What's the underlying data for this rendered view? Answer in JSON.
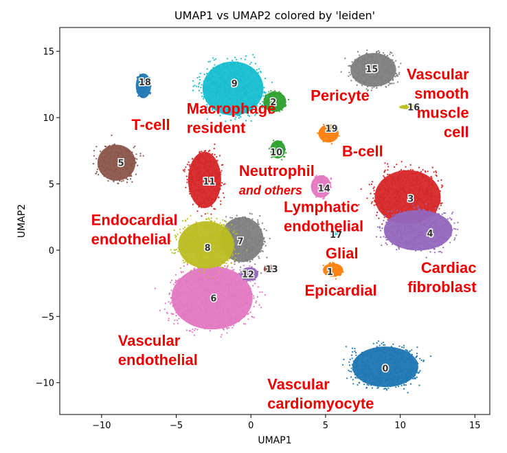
{
  "chart_data": {
    "type": "scatter",
    "title": "UMAP1 vs UMAP2 colored by 'leiden'",
    "xlabel": "UMAP1",
    "ylabel": "UMAP2",
    "xlim": [
      -12.8,
      16.0
    ],
    "ylim": [
      -12.4,
      16.8
    ],
    "xticks": [
      -10,
      -5,
      0,
      5,
      10,
      15
    ],
    "yticks": [
      -10,
      -5,
      0,
      5,
      10,
      15
    ],
    "clusters": [
      {
        "id": "0",
        "color": "#1f77b4",
        "cx": 9.0,
        "cy": -8.8,
        "rx": 2.6,
        "ry": 1.8,
        "n": 650
      },
      {
        "id": "1",
        "color": "#ff7f0e",
        "cx": 5.5,
        "cy": -1.5,
        "rx": 0.8,
        "ry": 0.6,
        "n": 60
      },
      {
        "id": "2",
        "color": "#2ca02c",
        "cx": 1.6,
        "cy": 11.2,
        "rx": 0.9,
        "ry": 0.9,
        "n": 55
      },
      {
        "id": "3",
        "color": "#d62728",
        "cx": 10.5,
        "cy": 4.0,
        "rx": 2.6,
        "ry": 2.4,
        "n": 600
      },
      {
        "id": "4",
        "color": "#9467bd",
        "cx": 11.2,
        "cy": 1.5,
        "rx": 2.7,
        "ry": 1.8,
        "n": 550
      },
      {
        "id": "5",
        "color": "#8c564b",
        "cx": -9.0,
        "cy": 6.6,
        "rx": 1.5,
        "ry": 1.6,
        "n": 280
      },
      {
        "id": "6",
        "color": "#e377c2",
        "cx": -2.6,
        "cy": -3.6,
        "rx": 3.2,
        "ry": 2.8,
        "n": 800
      },
      {
        "id": "7",
        "color": "#7f7f7f",
        "cx": -0.6,
        "cy": 0.8,
        "rx": 1.7,
        "ry": 2.0,
        "n": 350
      },
      {
        "id": "8",
        "color": "#bcbd22",
        "cx": -3.0,
        "cy": 0.4,
        "rx": 2.2,
        "ry": 2.1,
        "n": 500
      },
      {
        "id": "9",
        "color": "#17becf",
        "cx": -1.2,
        "cy": 12.2,
        "rx": 2.4,
        "ry": 2.4,
        "n": 650
      },
      {
        "id": "10",
        "color": "#2ca02c",
        "cx": 1.8,
        "cy": 7.6,
        "rx": 0.6,
        "ry": 0.8,
        "n": 40
      },
      {
        "id": "11",
        "color": "#d62728",
        "cx": -3.1,
        "cy": 5.3,
        "rx": 1.3,
        "ry": 2.5,
        "n": 380
      },
      {
        "id": "12",
        "color": "#9467bd",
        "cx": -0.1,
        "cy": -1.8,
        "rx": 0.7,
        "ry": 0.6,
        "n": 50
      },
      {
        "id": "13",
        "color": "#8c564b",
        "cx": 1.2,
        "cy": -1.4,
        "rx": 0.4,
        "ry": 0.4,
        "n": 25
      },
      {
        "id": "14",
        "color": "#e377c2",
        "cx": 4.7,
        "cy": 4.8,
        "rx": 0.8,
        "ry": 1.0,
        "n": 70
      },
      {
        "id": "15",
        "color": "#7f7f7f",
        "cx": 8.2,
        "cy": 13.6,
        "rx": 1.8,
        "ry": 1.5,
        "n": 400
      },
      {
        "id": "16",
        "color": "#bcbd22",
        "cx": 10.6,
        "cy": 10.8,
        "rx": 0.8,
        "ry": 0.2,
        "n": 20
      },
      {
        "id": "17",
        "color": "#17becf",
        "cx": 5.6,
        "cy": 1.3,
        "rx": 0.3,
        "ry": 0.2,
        "n": 10
      },
      {
        "id": "18",
        "color": "#1f77b4",
        "cx": -7.2,
        "cy": 12.4,
        "rx": 0.6,
        "ry": 1.1,
        "n": 60
      },
      {
        "id": "19",
        "color": "#ff7f0e",
        "cx": 5.2,
        "cy": 8.8,
        "rx": 0.8,
        "ry": 0.8,
        "n": 60
      }
    ],
    "cluster_labels": [
      {
        "text": "0",
        "x": 9.0,
        "y": -8.9
      },
      {
        "text": "1",
        "x": 5.3,
        "y": -1.6
      },
      {
        "text": "2",
        "x": 1.5,
        "y": 11.2
      },
      {
        "text": "3",
        "x": 10.7,
        "y": 3.9
      },
      {
        "text": "4",
        "x": 12.0,
        "y": 1.3
      },
      {
        "text": "5",
        "x": -8.7,
        "y": 6.6
      },
      {
        "text": "6",
        "x": -2.5,
        "y": -3.6
      },
      {
        "text": "7",
        "x": -0.7,
        "y": 0.7
      },
      {
        "text": "8",
        "x": -2.9,
        "y": 0.2
      },
      {
        "text": "9",
        "x": -1.1,
        "y": 12.6
      },
      {
        "text": "10",
        "x": 1.7,
        "y": 7.4
      },
      {
        "text": "11",
        "x": -2.8,
        "y": 5.2
      },
      {
        "text": "12",
        "x": -0.2,
        "y": -1.8
      },
      {
        "text": "13",
        "x": 1.4,
        "y": -1.4
      },
      {
        "text": "14",
        "x": 4.9,
        "y": 4.7
      },
      {
        "text": "15",
        "x": 8.1,
        "y": 13.7
      },
      {
        "text": "16",
        "x": 10.9,
        "y": 10.8
      },
      {
        "text": "17",
        "x": 5.7,
        "y": 1.2
      },
      {
        "text": "18",
        "x": -7.1,
        "y": 12.7
      },
      {
        "text": "19",
        "x": 5.4,
        "y": 9.2
      }
    ],
    "annotations": [
      {
        "lines": [
          "T-cell"
        ],
        "x": -8.0,
        "y": 9.5,
        "anchor": "start"
      },
      {
        "lines": [
          "Macrophage",
          "resident"
        ],
        "x": -4.3,
        "y": 10.7,
        "anchor": "start"
      },
      {
        "lines": [
          "Pericyte"
        ],
        "x": 4.0,
        "y": 11.7,
        "anchor": "start"
      },
      {
        "lines": [
          "Vascular",
          "smooth",
          "muscle",
          "cell"
        ],
        "x": 14.6,
        "y": 13.3,
        "anchor": "end"
      },
      {
        "lines": [
          "B-cell"
        ],
        "x": 6.1,
        "y": 7.5,
        "anchor": "start"
      },
      {
        "lines": [
          "Neutrophil"
        ],
        "x": -0.8,
        "y": 6.0,
        "anchor": "start"
      },
      {
        "lines": [
          "and others"
        ],
        "x": -0.8,
        "y": 4.6,
        "anchor": "start",
        "italic": true
      },
      {
        "lines": [
          "Lymphatic",
          "endothelial"
        ],
        "x": 2.2,
        "y": 3.3,
        "anchor": "start"
      },
      {
        "lines": [
          "Endocardial",
          "endothelial"
        ],
        "x": -10.7,
        "y": 2.3,
        "anchor": "start"
      },
      {
        "lines": [
          "Glial"
        ],
        "x": 5.0,
        "y": -0.2,
        "anchor": "start"
      },
      {
        "lines": [
          "Epicardial"
        ],
        "x": 3.6,
        "y": -3.0,
        "anchor": "start"
      },
      {
        "lines": [
          "Cardiac",
          "fibroblast"
        ],
        "x": 15.1,
        "y": -1.3,
        "anchor": "end"
      },
      {
        "lines": [
          "Vascular",
          "endothelial"
        ],
        "x": -8.9,
        "y": -6.8,
        "anchor": "start"
      },
      {
        "lines": [
          "Vascular",
          "cardiomyocyte"
        ],
        "x": 1.1,
        "y": -10.1,
        "anchor": "start"
      }
    ]
  }
}
